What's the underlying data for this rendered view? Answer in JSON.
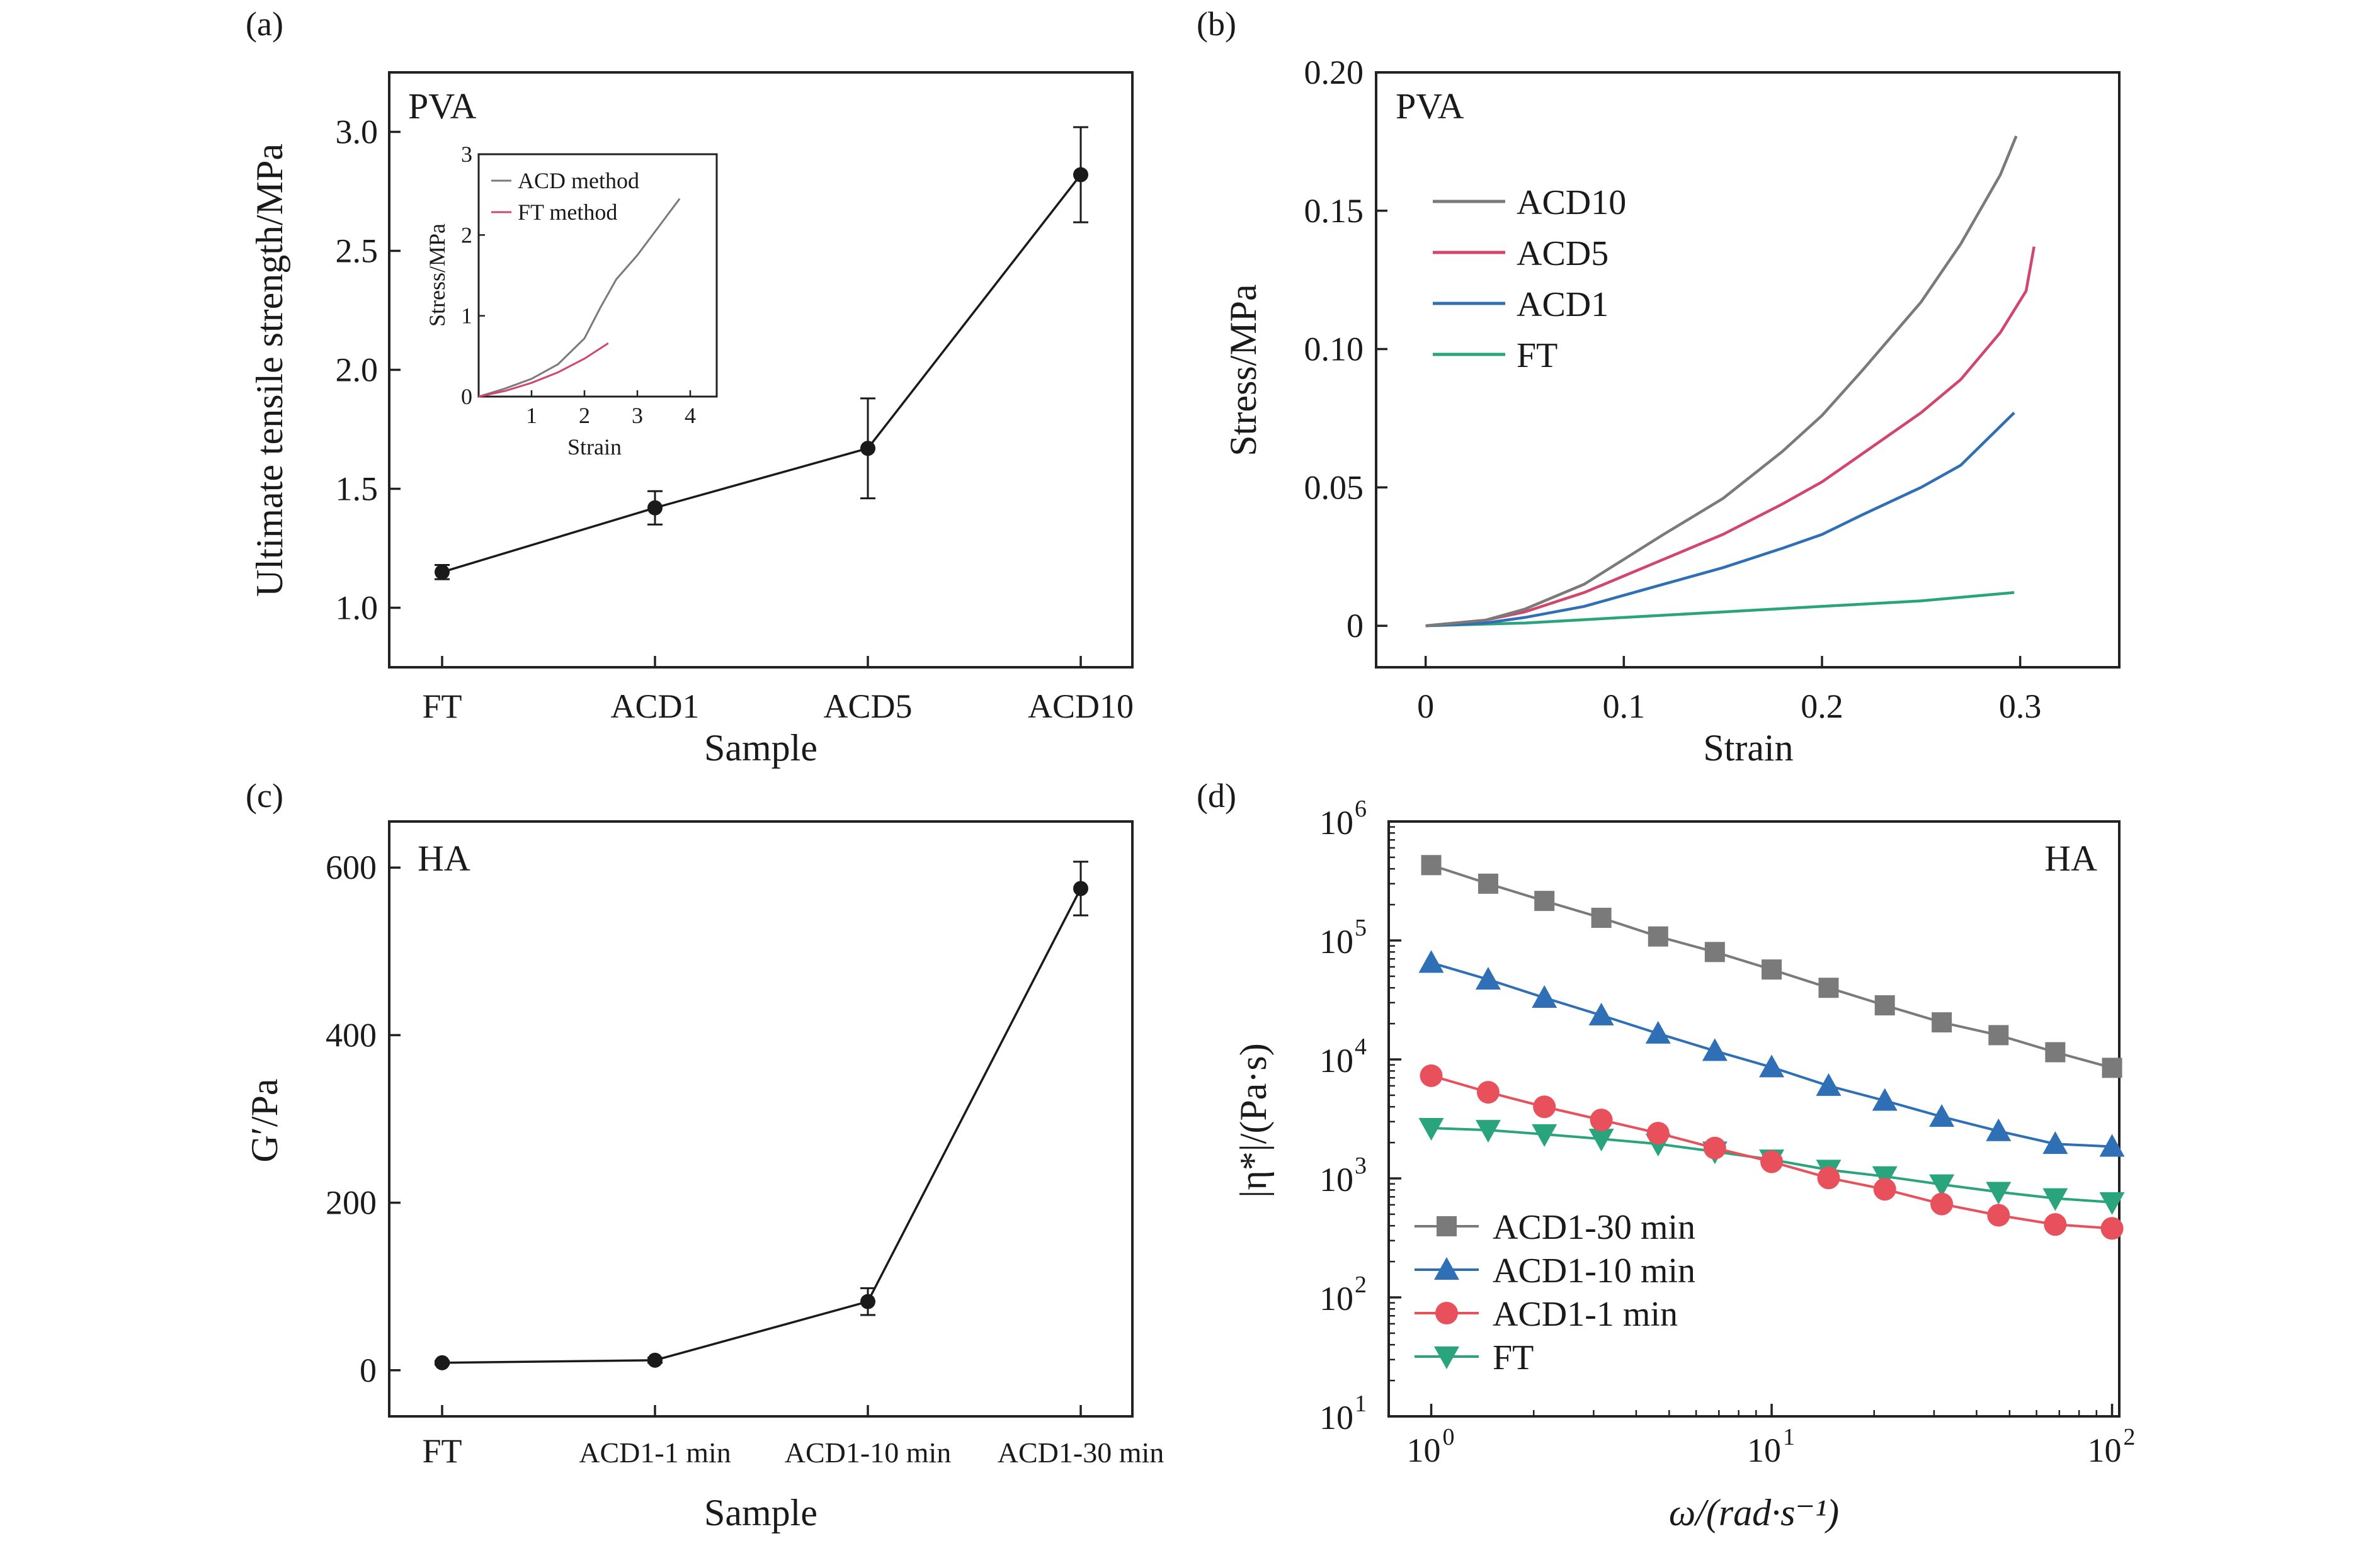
{
  "panels": {
    "a": {
      "letter": "(a)",
      "title": "PVA",
      "xlabel": "Sample",
      "ylabel": "Ultimate tensile strength/MPa",
      "inset": {
        "xlabel": "Strain",
        "ylabel": "Stress/MPa"
      }
    },
    "b": {
      "letter": "(b)",
      "title": "PVA",
      "xlabel": "Strain",
      "ylabel": "Stress/MPa"
    },
    "c": {
      "letter": "(c)",
      "title": "HA",
      "xlabel": "Sample",
      "ylabel": "G′/Pa"
    },
    "d": {
      "letter": "(d)",
      "title": "HA",
      "xlabel": "ω/(rad·s⁻¹)",
      "ylabel": "|η*|/(Pa·s)"
    }
  },
  "chart_data": [
    {
      "id": "a",
      "type": "line",
      "title": "PVA",
      "xlabel": "Sample",
      "ylabel": "Ultimate tensile strength/MPa",
      "categories": [
        "FT",
        "ACD1",
        "ACD5",
        "ACD10"
      ],
      "values": [
        1.15,
        1.42,
        1.67,
        2.82
      ],
      "errors": [
        0.03,
        0.07,
        0.21,
        0.2
      ],
      "ylim": [
        0.75,
        3.25
      ],
      "yticks": [
        1.0,
        1.5,
        2.0,
        2.5,
        3.0
      ],
      "ytick_labels": [
        "1.0",
        "1.5",
        "2.0",
        "2.5",
        "3.0"
      ],
      "color": "#1a1a1a",
      "inset": {
        "type": "line",
        "xlabel": "Strain",
        "ylabel": "Stress/MPa",
        "xlim": [
          0,
          4.5
        ],
        "ylim": [
          0,
          3
        ],
        "xticks": [
          1,
          2,
          3,
          4
        ],
        "xtick_labels": [
          "1",
          "2",
          "3",
          "4"
        ],
        "yticks": [
          0,
          1,
          2,
          3
        ],
        "ytick_labels": [
          "0",
          "1",
          "2",
          "3"
        ],
        "series": [
          {
            "name": "ACD method",
            "color": "#7a7a7a",
            "x": [
              0,
              0.5,
              1.0,
              1.5,
              2.0,
              2.3,
              2.6,
              3.0,
              3.4,
              3.8
            ],
            "y": [
              0,
              0.1,
              0.22,
              0.4,
              0.72,
              1.1,
              1.45,
              1.75,
              2.1,
              2.45
            ]
          },
          {
            "name": "FT method",
            "color": "#d2466e",
            "x": [
              0,
              0.5,
              1.0,
              1.5,
              2.0,
              2.45
            ],
            "y": [
              0,
              0.07,
              0.17,
              0.3,
              0.47,
              0.66
            ]
          }
        ]
      }
    },
    {
      "id": "b",
      "type": "line",
      "title": "PVA",
      "xlabel": "Strain",
      "ylabel": "Stress/MPa",
      "xlim": [
        -0.025,
        0.35
      ],
      "ylim": [
        -0.015,
        0.2
      ],
      "xticks": [
        0,
        0.1,
        0.2,
        0.3
      ],
      "xtick_labels": [
        "0",
        "0.1",
        "0.2",
        "0.3"
      ],
      "yticks": [
        0,
        0.05,
        0.1,
        0.15,
        0.2
      ],
      "ytick_labels": [
        "0",
        "0.05",
        "0.10",
        "0.15",
        "0.20"
      ],
      "legend": "upper-left",
      "series": [
        {
          "name": "ACD10",
          "color": "#7a7a7a",
          "x": [
            0,
            0.03,
            0.05,
            0.08,
            0.1,
            0.12,
            0.15,
            0.18,
            0.2,
            0.22,
            0.25,
            0.27,
            0.29,
            0.298
          ],
          "y": [
            0,
            0.002,
            0.006,
            0.015,
            0.024,
            0.033,
            0.046,
            0.063,
            0.076,
            0.092,
            0.117,
            0.138,
            0.163,
            0.177
          ]
        },
        {
          "name": "ACD5",
          "color": "#d2466e",
          "x": [
            0,
            0.03,
            0.05,
            0.08,
            0.1,
            0.12,
            0.15,
            0.18,
            0.2,
            0.22,
            0.25,
            0.27,
            0.29,
            0.303,
            0.307
          ],
          "y": [
            0,
            0.002,
            0.005,
            0.012,
            0.018,
            0.024,
            0.033,
            0.044,
            0.052,
            0.062,
            0.077,
            0.089,
            0.106,
            0.121,
            0.137
          ]
        },
        {
          "name": "ACD1",
          "color": "#2e6fb5",
          "x": [
            0,
            0.03,
            0.05,
            0.08,
            0.1,
            0.12,
            0.15,
            0.18,
            0.2,
            0.22,
            0.25,
            0.27,
            0.297
          ],
          "y": [
            0,
            0.001,
            0.003,
            0.007,
            0.011,
            0.015,
            0.021,
            0.028,
            0.033,
            0.04,
            0.05,
            0.058,
            0.077
          ]
        },
        {
          "name": "FT",
          "color": "#2aa47c",
          "x": [
            0,
            0.05,
            0.1,
            0.15,
            0.2,
            0.25,
            0.297
          ],
          "y": [
            0,
            0.001,
            0.003,
            0.005,
            0.007,
            0.009,
            0.012
          ]
        }
      ]
    },
    {
      "id": "c",
      "type": "line",
      "title": "HA",
      "xlabel": "Sample",
      "ylabel": "G′/Pa",
      "categories": [
        "FT",
        "ACD1-1 min",
        "ACD1-10 min",
        "ACD1-30 min"
      ],
      "values": [
        9,
        12,
        82,
        575
      ],
      "errors": [
        2,
        3,
        16,
        32
      ],
      "ylim": [
        -55,
        655
      ],
      "yticks": [
        0,
        200,
        400,
        600
      ],
      "ytick_labels": [
        "0",
        "200",
        "400",
        "600"
      ],
      "color": "#1a1a1a"
    },
    {
      "id": "d",
      "type": "line",
      "log": true,
      "title": "HA",
      "xlabel": "ω/(rad·s⁻¹)",
      "ylabel": "|η*|/(Pa·s)",
      "xlim": [
        0.75,
        105
      ],
      "ylim": [
        10,
        1000000
      ],
      "xticks": [
        1,
        10,
        100
      ],
      "xtick_labels": [
        "10",
        "10",
        "10"
      ],
      "xtick_exponents": [
        "0",
        "1",
        "2"
      ],
      "yticks": [
        10,
        100,
        1000,
        10000,
        100000,
        1000000
      ],
      "ytick_labels": [
        "10",
        "10",
        "10",
        "10",
        "10",
        "10"
      ],
      "ytick_exponents": [
        "1",
        "2",
        "3",
        "4",
        "5",
        "6"
      ],
      "legend": "lower-left",
      "x": [
        1.0,
        1.47,
        2.15,
        3.16,
        4.64,
        6.81,
        10.0,
        14.7,
        21.5,
        31.6,
        46.4,
        68.1,
        100
      ],
      "series": [
        {
          "name": "ACD1-30 min",
          "color": "#7a7a7a",
          "marker": "square",
          "values": [
            430000,
            300000,
            215000,
            155000,
            108000,
            80000,
            57000,
            40000,
            28500,
            20500,
            16000,
            11500,
            8500
          ]
        },
        {
          "name": "ACD1-10 min",
          "color": "#2e6fb5",
          "marker": "triangle-up",
          "values": [
            65000,
            47000,
            33000,
            23500,
            16500,
            11800,
            8600,
            6000,
            4500,
            3300,
            2500,
            1950,
            1850
          ]
        },
        {
          "name": "ACD1-1 min",
          "color": "#e8515c",
          "marker": "circle",
          "values": [
            7300,
            5300,
            4000,
            3100,
            2400,
            1800,
            1380,
            1010,
            810,
            610,
            490,
            410,
            380
          ]
        },
        {
          "name": "FT",
          "color": "#2aa47c",
          "marker": "triangle-down",
          "values": [
            2650,
            2550,
            2350,
            2150,
            1950,
            1680,
            1440,
            1180,
            1040,
            890,
            770,
            680,
            630
          ]
        }
      ]
    }
  ]
}
